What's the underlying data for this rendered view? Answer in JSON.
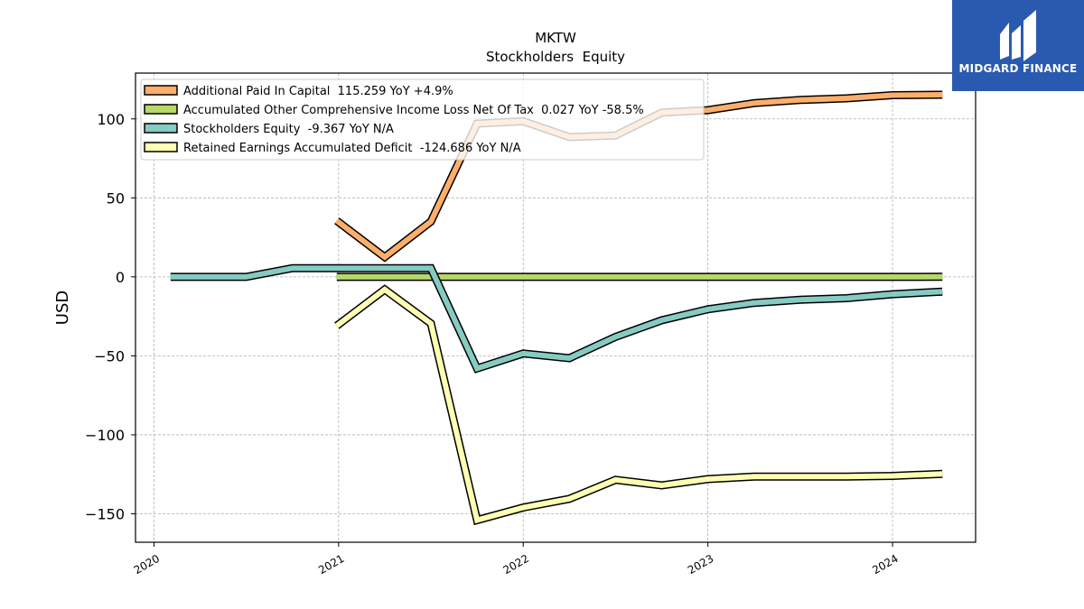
{
  "brand": {
    "name": "MIDGARD FINANCE",
    "color": "#2a5ab0"
  },
  "chart_data": {
    "type": "line",
    "title": "MKTW",
    "subtitle": "Stockholders  Equity",
    "xlabel": "",
    "ylabel": "USD",
    "ylim": [
      -168,
      129
    ],
    "xlim": [
      2019.9,
      2024.45
    ],
    "grid": true,
    "legend_position": "top-left",
    "x_ticks": [
      2020,
      2021,
      2022,
      2023,
      2024
    ],
    "x_tick_labels": [
      "2020",
      "2021",
      "2022",
      "2023",
      "2024"
    ],
    "y_ticks": [
      100,
      50,
      0,
      -50,
      -100,
      -150
    ],
    "y_tick_labels": [
      "100",
      "50",
      "0",
      "−50",
      "−100",
      "−150"
    ],
    "series": [
      {
        "name": "Additional Paid In Capital  115.259 YoY +4.9%",
        "color": "#fdae6b",
        "points": [
          [
            2020.99,
            35.5
          ],
          [
            2021.25,
            12.5
          ],
          [
            2021.5,
            35.0
          ],
          [
            2021.75,
            97.0
          ],
          [
            2022.0,
            98.5
          ],
          [
            2022.25,
            88.5
          ],
          [
            2022.5,
            89.5
          ],
          [
            2022.75,
            104.0
          ],
          [
            2023.0,
            105.5
          ],
          [
            2023.25,
            110.0
          ],
          [
            2023.5,
            112.0
          ],
          [
            2023.75,
            113.0
          ],
          [
            2024.0,
            115.0
          ],
          [
            2024.27,
            115.3
          ]
        ]
      },
      {
        "name": "Accumulated Other Comprehensive Income Loss Net Of Tax  0.027 YoY -58.5%",
        "color": "#b5d96a",
        "points": [
          [
            2020.99,
            0.0
          ],
          [
            2021.25,
            0.0
          ],
          [
            2021.5,
            0.0
          ],
          [
            2021.75,
            0.0
          ],
          [
            2022.0,
            0.0
          ],
          [
            2022.25,
            0.0
          ],
          [
            2022.5,
            0.0
          ],
          [
            2022.75,
            0.0
          ],
          [
            2023.0,
            0.0
          ],
          [
            2023.25,
            0.0
          ],
          [
            2023.5,
            0.0
          ],
          [
            2023.75,
            0.0
          ],
          [
            2024.0,
            0.0
          ],
          [
            2024.27,
            0.03
          ]
        ]
      },
      {
        "name": "Stockholders Equity  -9.367 YoY N/A",
        "color": "#86cbc2",
        "points": [
          [
            2020.09,
            0.0
          ],
          [
            2020.5,
            0.0
          ],
          [
            2020.75,
            5.5
          ],
          [
            2021.0,
            5.5
          ],
          [
            2021.25,
            5.5
          ],
          [
            2021.5,
            5.5
          ],
          [
            2021.75,
            -58.0
          ],
          [
            2022.0,
            -48.5
          ],
          [
            2022.25,
            -51.5
          ],
          [
            2022.5,
            -38.0
          ],
          [
            2022.75,
            -27.5
          ],
          [
            2023.0,
            -20.5
          ],
          [
            2023.25,
            -16.5
          ],
          [
            2023.5,
            -14.5
          ],
          [
            2023.75,
            -13.5
          ],
          [
            2024.0,
            -11.0
          ],
          [
            2024.27,
            -9.4
          ]
        ]
      },
      {
        "name": "Retained Earnings Accumulated Deficit  -124.686 YoY N/A",
        "color": "#ffffb3",
        "points": [
          [
            2020.99,
            -31.0
          ],
          [
            2021.25,
            -8.0
          ],
          [
            2021.5,
            -29.5
          ],
          [
            2021.75,
            -154.0
          ],
          [
            2022.0,
            -146.0
          ],
          [
            2022.25,
            -140.5
          ],
          [
            2022.5,
            -128.5
          ],
          [
            2022.75,
            -132.0
          ],
          [
            2023.0,
            -128.0
          ],
          [
            2023.25,
            -126.5
          ],
          [
            2023.5,
            -126.5
          ],
          [
            2023.75,
            -126.5
          ],
          [
            2024.0,
            -126.0
          ],
          [
            2024.27,
            -124.7
          ]
        ]
      }
    ]
  }
}
